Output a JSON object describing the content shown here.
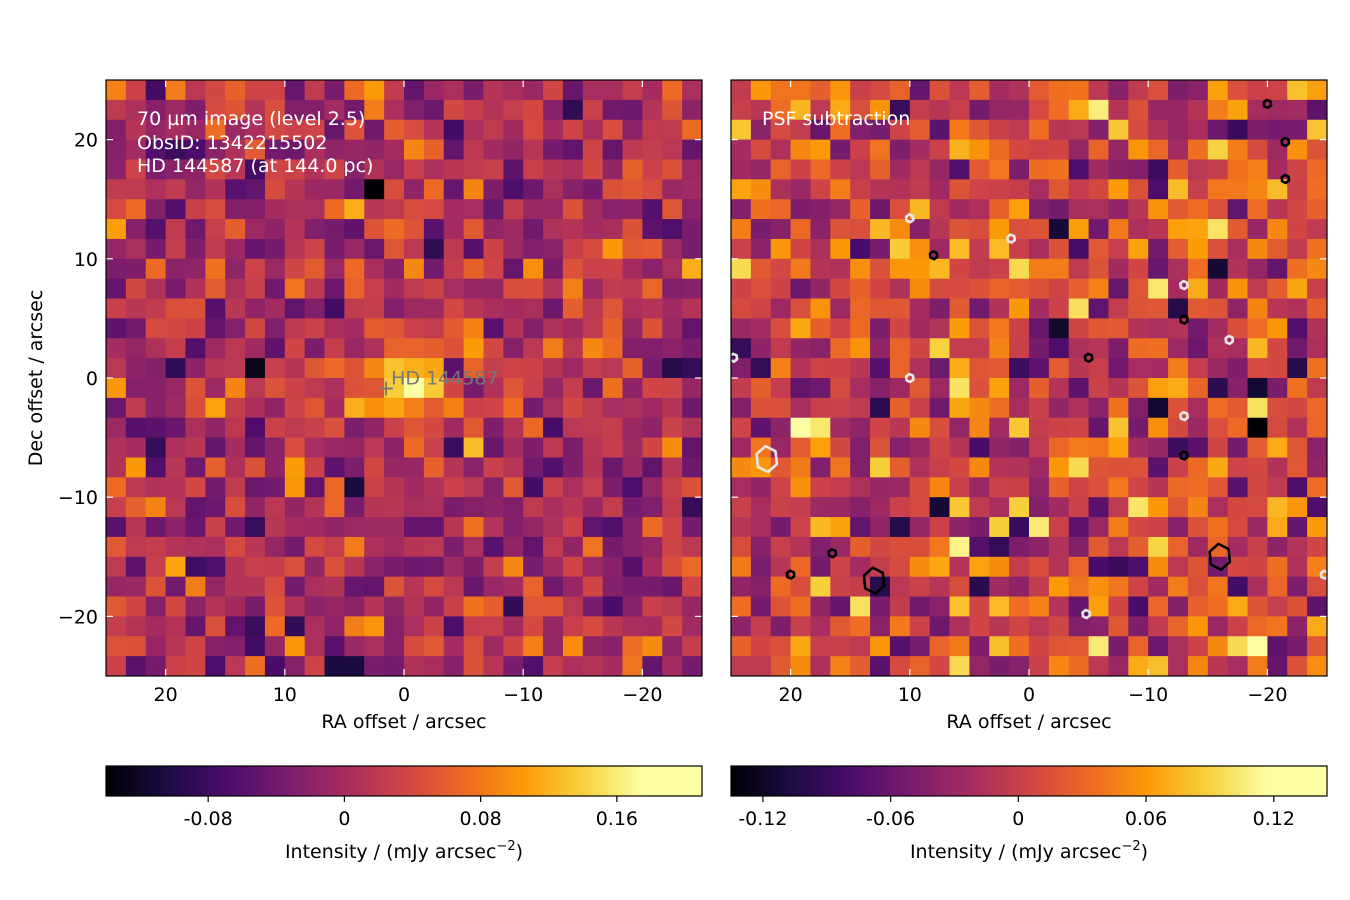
{
  "chart_data": [
    {
      "type": "heatmap",
      "panel": "left",
      "annotation_lines": [
        "70 µm image (level 2.5)",
        "ObsID: 1342215502",
        "HD 144587 (at 144.0 pc)"
      ],
      "xlabel": "RA offset / arcsec",
      "ylabel": "Dec offset / arcsec",
      "xlim": [
        25,
        -25
      ],
      "ylim": [
        -25,
        25
      ],
      "xticks": [
        20,
        10,
        0,
        -10,
        -20
      ],
      "xtick_labels": [
        "20",
        "10",
        "0",
        "−10",
        "−20"
      ],
      "yticks": [
        20,
        10,
        0,
        -10,
        -20
      ],
      "ytick_labels": [
        "20",
        "10",
        "0",
        "−10",
        "−20"
      ],
      "grid_size": [
        30,
        30
      ],
      "pixel_scale_arcsec": 1.6667,
      "colormap": "inferno",
      "star_marker": {
        "label": "HD 144587",
        "x": 1.5,
        "y": -0.8
      },
      "peak": {
        "x": -0.5,
        "y": -0.5,
        "value": 0.2
      },
      "colorbar": {
        "label": "Intensity / (mJy arcsec",
        "label_exponent": "−2",
        "label_suffix": ")",
        "range": [
          -0.14,
          0.21
        ],
        "ticks": [
          -0.08,
          0,
          0.08,
          0.16
        ],
        "tick_labels": [
          "-0.08",
          "0",
          "0.08",
          "0.16"
        ]
      }
    },
    {
      "type": "heatmap",
      "panel": "right",
      "annotation_lines": [
        "PSF subtraction"
      ],
      "xlabel": "RA offset / arcsec",
      "xlim": [
        25,
        -25
      ],
      "ylim": [
        -25,
        25
      ],
      "xticks": [
        20,
        10,
        0,
        -10,
        -20
      ],
      "xtick_labels": [
        "20",
        "10",
        "0",
        "−10",
        "−20"
      ],
      "grid_size": [
        30,
        30
      ],
      "pixel_scale_arcsec": 1.6667,
      "colormap": "inferno",
      "contours": [
        {
          "color": "black",
          "x": 13,
          "y": -17
        },
        {
          "color": "black",
          "x": -16,
          "y": -15
        },
        {
          "color": "black",
          "x": 8,
          "y": 10.3
        },
        {
          "color": "black",
          "x": -5,
          "y": 1.7
        },
        {
          "color": "black",
          "x": -13,
          "y": 4.9
        },
        {
          "color": "black",
          "x": -13,
          "y": -6.5
        },
        {
          "color": "black",
          "x": 20,
          "y": -16.5
        },
        {
          "color": "black",
          "x": 16.5,
          "y": -14.7
        },
        {
          "color": "black",
          "x": -20,
          "y": 23
        },
        {
          "color": "black",
          "x": -21.5,
          "y": 16.7
        },
        {
          "color": "black",
          "x": -21.5,
          "y": 19.8
        },
        {
          "color": "white",
          "x": 22,
          "y": -6.8
        },
        {
          "color": "white",
          "x": -13,
          "y": 7.8
        },
        {
          "color": "white",
          "x": 10,
          "y": 13.4
        },
        {
          "color": "white",
          "x": -13,
          "y": -3.2
        },
        {
          "color": "white",
          "x": 10,
          "y": 0
        },
        {
          "color": "white",
          "x": 1.5,
          "y": 11.7
        },
        {
          "color": "white",
          "x": -4.8,
          "y": -19.8
        },
        {
          "color": "white",
          "x": -16.8,
          "y": 3.2
        },
        {
          "color": "white",
          "x": 24.8,
          "y": 1.7
        },
        {
          "color": "white",
          "x": -24.8,
          "y": -16.5
        }
      ],
      "colorbar": {
        "label": "Intensity / (mJy arcsec",
        "label_exponent": "−2",
        "label_suffix": ")",
        "range": [
          -0.135,
          0.145
        ],
        "ticks": [
          -0.12,
          -0.06,
          0,
          0.06,
          0.12
        ],
        "tick_labels": [
          "-0.12",
          "-0.06",
          "0",
          "0.06",
          "0.12"
        ]
      }
    }
  ]
}
